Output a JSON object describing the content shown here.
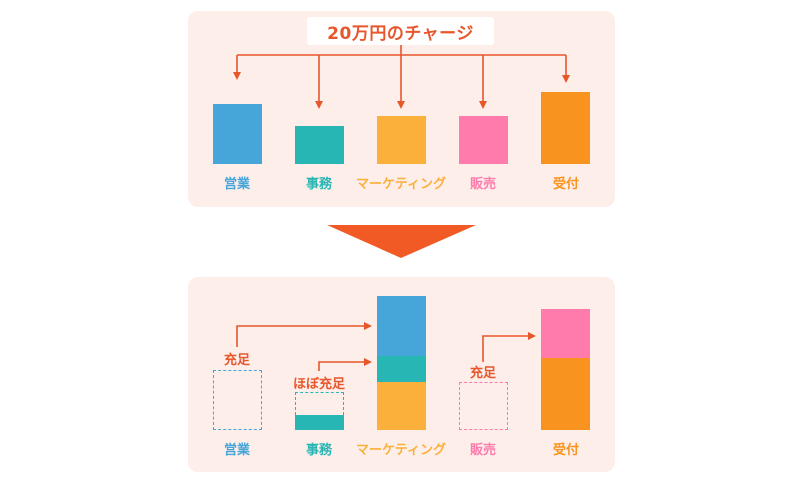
{
  "top": {
    "title": "20万円のチャージ",
    "departments": [
      {
        "label": "営業",
        "color": "#46a5d9"
      },
      {
        "label": "事務",
        "color": "#27b6b4"
      },
      {
        "label": "マーケティング",
        "color": "#fbb03b"
      },
      {
        "label": "販売",
        "color": "#ff7bac"
      },
      {
        "label": "受付",
        "color": "#f7931e"
      }
    ]
  },
  "bottom": {
    "departments": [
      {
        "label": "営業",
        "color": "#46a5d9"
      },
      {
        "label": "事務",
        "color": "#27b6b4"
      },
      {
        "label": "マーケティング",
        "color": "#fbb03b"
      },
      {
        "label": "販売",
        "color": "#ff7bac"
      },
      {
        "label": "受付",
        "color": "#f7931e"
      }
    ],
    "notes": {
      "sales": "充足",
      "admin": "ほぼ充足",
      "retail": "充足"
    }
  },
  "colors": {
    "accent": "#e8562b",
    "panel": "#fdeeea",
    "down_arrow": "#f15a24"
  }
}
